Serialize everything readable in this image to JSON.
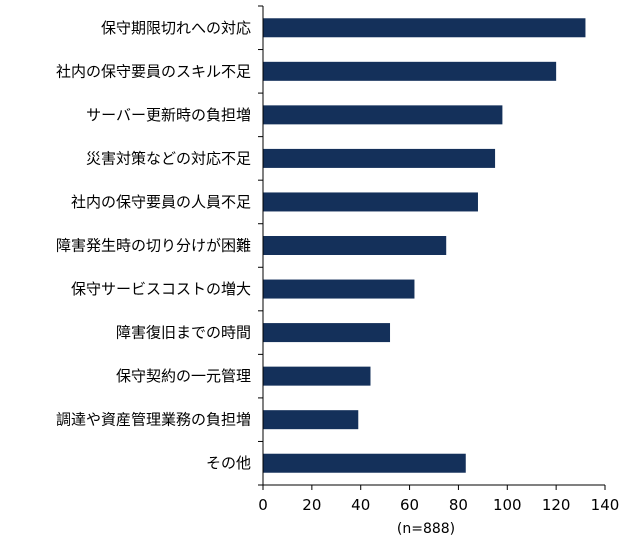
{
  "chart_data": {
    "type": "bar",
    "orientation": "horizontal",
    "categories": [
      "保守期限切れへの対応",
      "社内の保守要員のスキル不足",
      "サーバー更新時の負担増",
      "災害対策などの対応不足",
      "社内の保守要員の人員不足",
      "障害発生時の切り分けが困難",
      "保守サービスコストの増大",
      "障害復旧までの時間",
      "保守契約の一元管理",
      "調達や資産管理業務の負担増",
      "その他"
    ],
    "values": [
      132,
      120,
      98,
      95,
      88,
      75,
      62,
      52,
      44,
      39,
      83
    ],
    "xlim": [
      0,
      140
    ],
    "xticks": [
      0,
      20,
      40,
      60,
      80,
      100,
      120,
      140
    ],
    "xlabel": "",
    "ylabel": "",
    "title": "",
    "note": "(n=888)",
    "grid": false,
    "colors": {
      "bar": "#14305a",
      "axis": "#000000"
    }
  }
}
